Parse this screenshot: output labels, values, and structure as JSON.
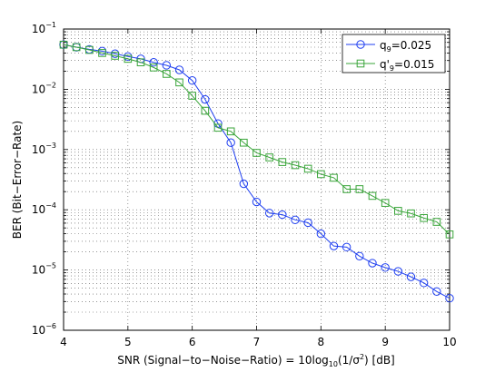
{
  "chart_data": {
    "type": "line",
    "xlabel": "SNR (Signal−to−Noise−Ratio) = 10log10(1/σ2) [dB]",
    "ylabel": "BER (Bit−Error−Rate)",
    "x_scale": "linear",
    "y_scale": "log",
    "xlim": [
      4,
      10
    ],
    "ylim": [
      1e-06,
      0.1
    ],
    "x_ticks": [
      "4",
      "5",
      "6",
      "7",
      "8",
      "9",
      "10"
    ],
    "y_ticks": [
      "10−6",
      "10−5",
      "10−4",
      "10−3",
      "10−2",
      "10−1"
    ],
    "grid": "dotted, major and minor",
    "legend_position": "top-right",
    "series": [
      {
        "name": "q9=0.025",
        "color": "#1f3ff0",
        "marker": "circle",
        "x": [
          4.0,
          4.2,
          4.4,
          4.6,
          4.8,
          5.0,
          5.2,
          5.4,
          5.6,
          5.8,
          6.0,
          6.2,
          6.4,
          6.6,
          6.8,
          7.0,
          7.2,
          7.4,
          7.6,
          7.8,
          8.0,
          8.2,
          8.4,
          8.6,
          8.8,
          9.0,
          9.2,
          9.4,
          9.6,
          9.8,
          10.0
        ],
        "y": [
          0.055,
          0.05,
          0.046,
          0.043,
          0.039,
          0.035,
          0.032,
          0.028,
          0.025,
          0.021,
          0.014,
          0.0068,
          0.0027,
          0.0013,
          0.00027,
          0.000135,
          8.8e-05,
          8.3e-05,
          6.8e-05,
          6.1e-05,
          4e-05,
          2.5e-05,
          2.4e-05,
          1.7e-05,
          1.3e-05,
          1.1e-05,
          9.5e-06,
          7.7e-06,
          6.1e-06,
          4.4e-06,
          3.4e-06
        ]
      },
      {
        "name": "q'9=0.015",
        "color": "#3aa53a",
        "marker": "square",
        "x": [
          4.0,
          4.2,
          4.4,
          4.6,
          4.8,
          5.0,
          5.2,
          5.4,
          5.6,
          5.8,
          6.0,
          6.2,
          6.4,
          6.6,
          6.8,
          7.0,
          7.2,
          7.4,
          7.6,
          7.8,
          8.0,
          8.2,
          8.4,
          8.6,
          8.8,
          9.0,
          9.2,
          9.4,
          9.6,
          9.8,
          10.0
        ],
        "y": [
          0.055,
          0.05,
          0.045,
          0.04,
          0.036,
          0.032,
          0.028,
          0.023,
          0.018,
          0.013,
          0.0078,
          0.0044,
          0.0023,
          0.002,
          0.0013,
          0.00088,
          0.00074,
          0.00062,
          0.00055,
          0.00048,
          0.00039,
          0.00034,
          0.00022,
          0.00022,
          0.00017,
          0.00013,
          9.6e-05,
          8.7e-05,
          7.3e-05,
          6.3e-05,
          3.9e-05
        ]
      }
    ]
  },
  "legend": {
    "entry1_main": "q",
    "entry1_sub": "9",
    "entry1_rest": "=0.025",
    "entry2_main": "q'",
    "entry2_sub": "9",
    "entry2_rest": "=0.015"
  },
  "axis_labels": {
    "xlabel_a": "SNR (Signal−to−Noise−Ratio) = 10log",
    "xlabel_sub": "10",
    "xlabel_b": "(1/σ",
    "xlabel_sup": "2",
    "xlabel_c": ") [dB]",
    "ylabel": "BER (Bit−Error−Rate)"
  }
}
